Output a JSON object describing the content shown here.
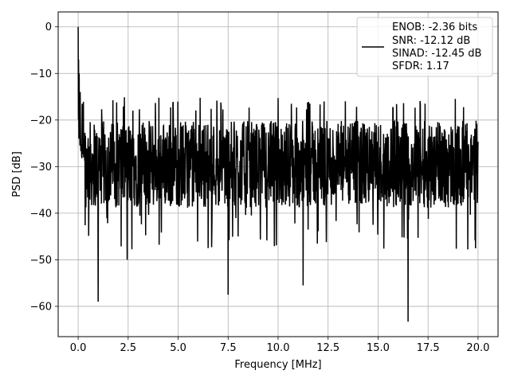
{
  "chart_data": {
    "type": "line",
    "title": "",
    "xlabel": "Frequency [MHz]",
    "ylabel": "PSD [dB]",
    "xlim": [
      -1.0,
      21.0
    ],
    "ylim": [
      -66.5,
      3.2
    ],
    "grid": true,
    "legend_position": "top-right",
    "x_ticks": [
      0.0,
      2.5,
      5.0,
      7.5,
      10.0,
      12.5,
      15.0,
      17.5,
      20.0
    ],
    "x_tick_labels": [
      "0.0",
      "2.5",
      "5.0",
      "7.5",
      "10.0",
      "12.5",
      "15.0",
      "17.5",
      "20.0"
    ],
    "y_ticks": [
      0,
      -10,
      -20,
      -30,
      -40,
      -50,
      -60
    ],
    "y_tick_labels": [
      "0",
      "−10",
      "−20",
      "−30",
      "−40",
      "−50",
      "−60"
    ],
    "legend_lines": [
      "ENOB: -2.36 bits",
      "SNR: -12.12 dB",
      "SINAD: -12.45 dB",
      "SFDR: 1.17"
    ],
    "series": [
      {
        "color": "#000000",
        "x_start": 0.0,
        "x_end": 20.0,
        "baseline_db": -29.5,
        "noise_band_db": [
          -40,
          -18
        ],
        "peaks": [
          {
            "x": 0.0,
            "y": 0
          },
          {
            "x": 0.02,
            "y": -7
          },
          {
            "x": 0.05,
            "y": -10
          },
          {
            "x": 0.1,
            "y": -14
          },
          {
            "x": 0.2,
            "y": -16.5
          },
          {
            "x": 1.0,
            "y": -59
          },
          {
            "x": 2.45,
            "y": -50
          },
          {
            "x": 7.5,
            "y": -57.5
          },
          {
            "x": 10.0,
            "y": -51
          },
          {
            "x": 11.25,
            "y": -55.5
          },
          {
            "x": 16.5,
            "y": -63.3
          },
          {
            "x": 10.0,
            "y": -15.3
          }
        ]
      }
    ]
  }
}
